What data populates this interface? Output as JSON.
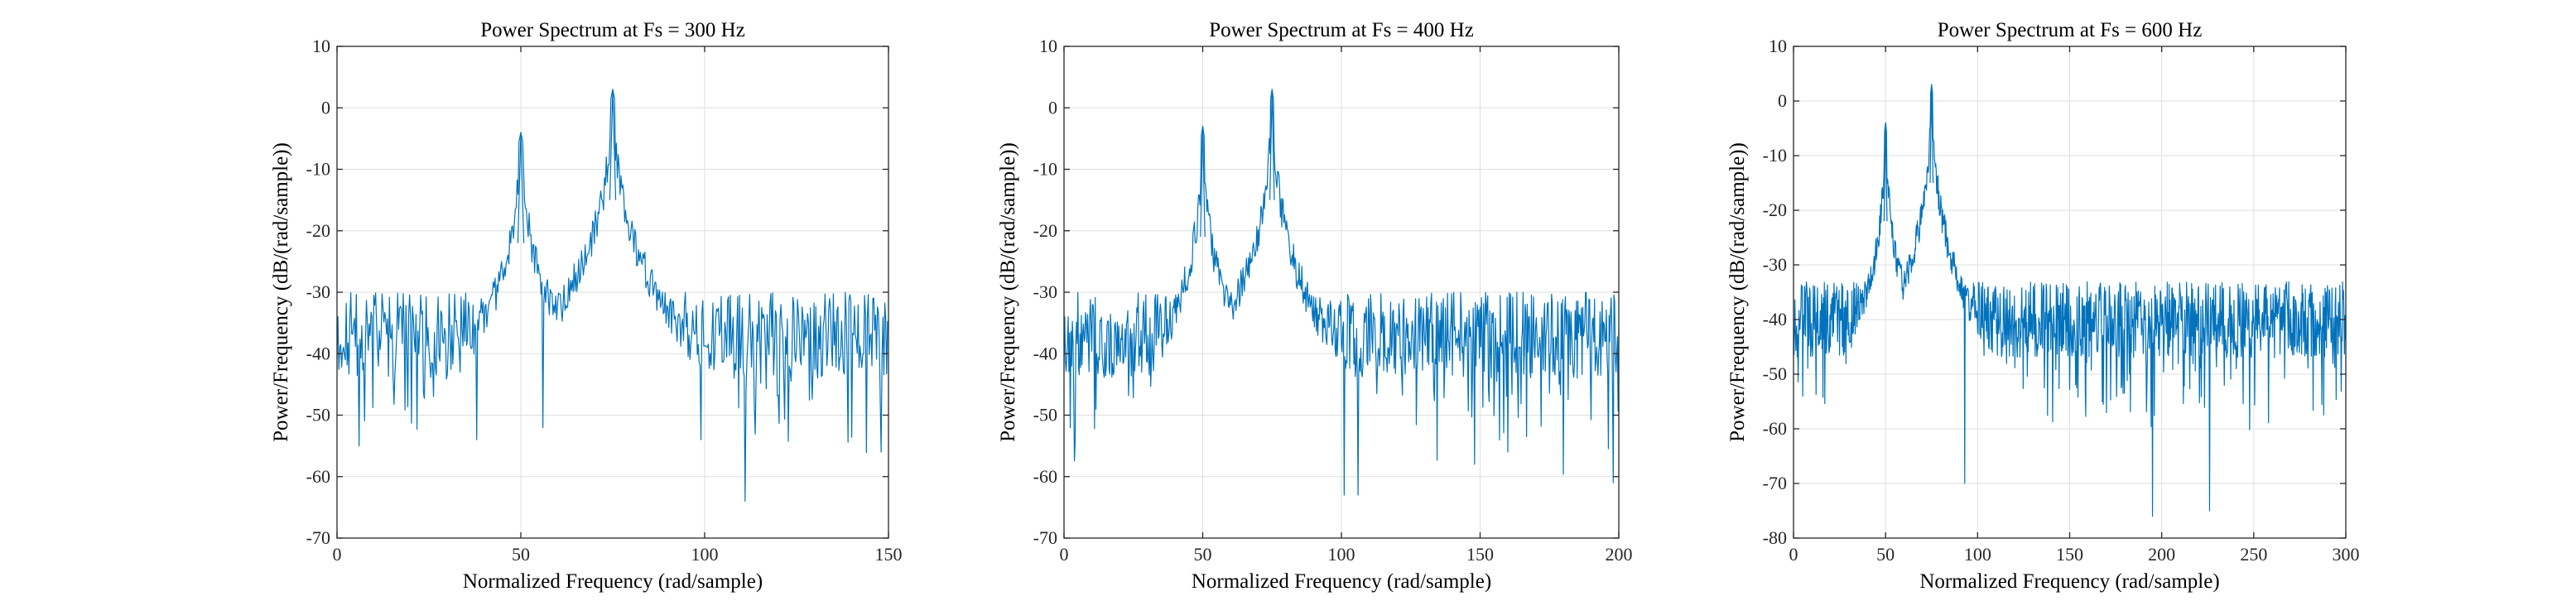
{
  "series_color": "#0072BD",
  "chart_data": [
    {
      "type": "line",
      "title": "Power Spectrum at Fs = 300 Hz",
      "xlabel": "Normalized Frequency (rad/sample)",
      "ylabel": "Power/Frequency (dB/(rad/sample))",
      "xlim": [
        0,
        150
      ],
      "ylim": [
        -70,
        10
      ],
      "xticks": [
        0,
        50,
        100,
        150
      ],
      "yticks": [
        -70,
        -60,
        -50,
        -40,
        -30,
        -20,
        -10,
        0,
        10
      ],
      "grid": true,
      "seed": 11,
      "peaks": [
        {
          "x": 50,
          "y": -4
        },
        {
          "x": 75,
          "y": 3
        }
      ],
      "noise_floor": -37,
      "min_dips": [
        {
          "x": 6,
          "y": -55
        },
        {
          "x": 38,
          "y": -54
        },
        {
          "x": 56,
          "y": -52
        },
        {
          "x": 99,
          "y": -54
        },
        {
          "x": 111,
          "y": -64
        },
        {
          "x": 148,
          "y": -56
        }
      ]
    },
    {
      "type": "line",
      "title": "Power Spectrum at Fs = 400 Hz",
      "xlabel": "Normalized Frequency (rad/sample)",
      "ylabel": "Power/Frequency (dB/(rad/sample))",
      "xlim": [
        0,
        200
      ],
      "ylim": [
        -70,
        10
      ],
      "xticks": [
        0,
        50,
        100,
        150,
        200
      ],
      "yticks": [
        -70,
        -60,
        -50,
        -40,
        -30,
        -20,
        -10,
        0,
        10
      ],
      "grid": true,
      "seed": 23,
      "peaks": [
        {
          "x": 50,
          "y": -3
        },
        {
          "x": 75,
          "y": 3
        }
      ],
      "noise_floor": -37,
      "min_dips": [
        {
          "x": 101,
          "y": -63
        },
        {
          "x": 106,
          "y": -63
        },
        {
          "x": 148,
          "y": -58
        },
        {
          "x": 160,
          "y": -56
        },
        {
          "x": 198,
          "y": -61
        }
      ]
    },
    {
      "type": "line",
      "title": "Power Spectrum at Fs = 600 Hz",
      "xlabel": "Normalized Frequency (rad/sample)",
      "ylabel": "Power/Frequency (dB/(rad/sample))",
      "xlim": [
        0,
        300
      ],
      "ylim": [
        -80,
        10
      ],
      "xticks": [
        0,
        50,
        100,
        150,
        200,
        250,
        300
      ],
      "yticks": [
        -80,
        -70,
        -60,
        -50,
        -40,
        -30,
        -20,
        -10,
        0,
        10
      ],
      "grid": true,
      "seed": 37,
      "peaks": [
        {
          "x": 50,
          "y": -4
        },
        {
          "x": 75,
          "y": 3
        }
      ],
      "noise_floor": -40,
      "min_dips": [
        {
          "x": 93,
          "y": -70
        },
        {
          "x": 195,
          "y": -76
        },
        {
          "x": 226,
          "y": -75
        }
      ]
    }
  ]
}
